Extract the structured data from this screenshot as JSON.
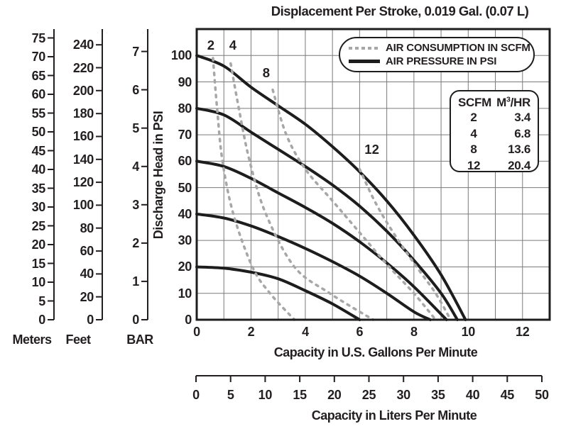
{
  "title": "Displacement Per Stroke, 0.019 Gal. (0.07 L)",
  "colors": {
    "ink": "#1d1d1d",
    "text": "#231f20",
    "grid": "#7a7a7a",
    "dashed_gray": "#a7a7a7",
    "background": "#ffffff"
  },
  "legend": {
    "items": [
      {
        "label": "AIR CONSUMPTION IN SCFM",
        "style": "dashed"
      },
      {
        "label": "AIR PRESSURE IN PSI",
        "style": "solid"
      }
    ]
  },
  "scfm_table": {
    "header1": "SCFM",
    "header2": {
      "base": "M",
      "sup": "3",
      "rest": "/HR"
    },
    "rows": [
      [
        "2",
        "3.4"
      ],
      [
        "4",
        "6.8"
      ],
      [
        "8",
        "13.6"
      ],
      [
        "12",
        "20.4"
      ]
    ]
  },
  "axes": {
    "psi_title": "Discharge Head in PSI",
    "gpm_title": "Capacity in U.S. Gallons Per Minute",
    "liters_title": "Capacity in Liters Per Minute",
    "meters_title": "Meters",
    "feet_title": "Feet",
    "bar_title": "BAR"
  },
  "chart_data": {
    "type": "line",
    "title": "Displacement Per Stroke, 0.019 Gal. (0.07 L)",
    "xlabel": "Capacity in U.S. Gallons Per Minute",
    "xlabel_secondary": "Capacity in Liters Per Minute",
    "ylabel": "Discharge Head in PSI",
    "xlim": [
      0,
      13
    ],
    "ylim": [
      0,
      110
    ],
    "grid": true,
    "x_ticks_gpm": [
      0,
      2,
      4,
      6,
      8,
      10,
      12
    ],
    "y_ticks_psi": [
      0,
      10,
      20,
      30,
      40,
      50,
      60,
      70,
      80,
      90,
      100
    ],
    "liters_scale": {
      "min": 0,
      "max": 50,
      "ticks": [
        0,
        5,
        10,
        15,
        20,
        25,
        30,
        35,
        40,
        45,
        50
      ]
    },
    "head_scales": {
      "meters": {
        "psi_per_unit": 1.4219,
        "ticks": [
          0,
          5,
          10,
          15,
          20,
          25,
          30,
          35,
          40,
          45,
          50,
          55,
          60,
          65,
          70,
          75
        ]
      },
      "feet": {
        "psi_per_unit": 0.4335,
        "ticks": [
          0,
          20,
          40,
          60,
          80,
          100,
          120,
          140,
          160,
          180,
          200,
          220,
          240
        ]
      },
      "bar": {
        "psi_per_unit": 14.504,
        "ticks": [
          0,
          1,
          2,
          3,
          4,
          5,
          6,
          7
        ]
      }
    },
    "series": [
      {
        "name": "air-pressure-100psi",
        "group": "pressure",
        "points": [
          [
            0,
            100
          ],
          [
            1,
            96
          ],
          [
            2,
            88
          ],
          [
            3,
            81
          ],
          [
            4,
            74
          ],
          [
            5,
            65.5
          ],
          [
            6,
            56
          ],
          [
            7,
            45
          ],
          [
            8,
            32
          ],
          [
            9,
            17
          ],
          [
            9.9,
            0
          ]
        ]
      },
      {
        "name": "air-pressure-80psi",
        "group": "pressure",
        "points": [
          [
            0,
            80
          ],
          [
            1,
            77.5
          ],
          [
            2,
            71
          ],
          [
            3,
            64.5
          ],
          [
            4,
            58
          ],
          [
            5,
            51
          ],
          [
            6,
            43
          ],
          [
            7,
            33.5
          ],
          [
            8,
            22.5
          ],
          [
            9,
            10
          ],
          [
            9.6,
            0
          ]
        ]
      },
      {
        "name": "air-pressure-60psi",
        "group": "pressure",
        "points": [
          [
            0,
            60
          ],
          [
            1,
            58
          ],
          [
            2,
            53.5
          ],
          [
            3,
            48
          ],
          [
            4,
            42.5
          ],
          [
            5,
            36.5
          ],
          [
            6,
            29.5
          ],
          [
            7,
            21.5
          ],
          [
            8,
            12.5
          ],
          [
            9.2,
            0
          ]
        ]
      },
      {
        "name": "air-pressure-40psi",
        "group": "pressure",
        "points": [
          [
            0,
            40
          ],
          [
            1,
            38.5
          ],
          [
            2,
            35.5
          ],
          [
            3,
            31.5
          ],
          [
            4,
            27
          ],
          [
            5,
            22
          ],
          [
            6,
            16.5
          ],
          [
            7,
            10
          ],
          [
            8,
            3
          ],
          [
            8.6,
            0
          ]
        ]
      },
      {
        "name": "air-pressure-20psi",
        "group": "pressure",
        "points": [
          [
            0,
            20
          ],
          [
            1,
            19.5
          ],
          [
            2,
            18
          ],
          [
            3,
            15.5
          ],
          [
            4,
            11
          ],
          [
            5,
            6
          ],
          [
            6,
            0
          ]
        ]
      },
      {
        "name": "air-consumption-2scfm",
        "group": "consumption",
        "curve_label": "2",
        "label_at": [
          0.52,
          103.8
        ],
        "points": [
          [
            0.6,
            99
          ],
          [
            0.75,
            80
          ],
          [
            0.95,
            60
          ],
          [
            1.35,
            40
          ],
          [
            2.05,
            20
          ],
          [
            2.7,
            10
          ],
          [
            3.6,
            0
          ]
        ]
      },
      {
        "name": "air-consumption-4scfm",
        "group": "consumption",
        "curve_label": "4",
        "label_at": [
          1.33,
          103.8
        ],
        "points": [
          [
            1.25,
            97
          ],
          [
            1.55,
            80
          ],
          [
            1.95,
            60
          ],
          [
            2.55,
            40
          ],
          [
            3.6,
            20
          ],
          [
            4.9,
            10
          ],
          [
            6.5,
            0
          ]
        ]
      },
      {
        "name": "air-consumption-8scfm",
        "group": "consumption",
        "curve_label": "8",
        "label_at": [
          2.56,
          93.5
        ],
        "points": [
          [
            2.8,
            87
          ],
          [
            3.3,
            70
          ],
          [
            4.0,
            57
          ],
          [
            5.0,
            45
          ],
          [
            6.0,
            33
          ],
          [
            7.0,
            21
          ],
          [
            8.0,
            10
          ],
          [
            8.8,
            0
          ]
        ]
      },
      {
        "name": "air-consumption-12scfm",
        "group": "consumption",
        "curve_label": "12",
        "label_at": [
          6.45,
          64.5
        ],
        "points": [
          [
            6.0,
            57
          ],
          [
            6.6,
            44
          ],
          [
            7.3,
            32
          ],
          [
            8.1,
            20
          ],
          [
            8.8,
            10
          ],
          [
            9.35,
            0
          ]
        ]
      }
    ]
  }
}
